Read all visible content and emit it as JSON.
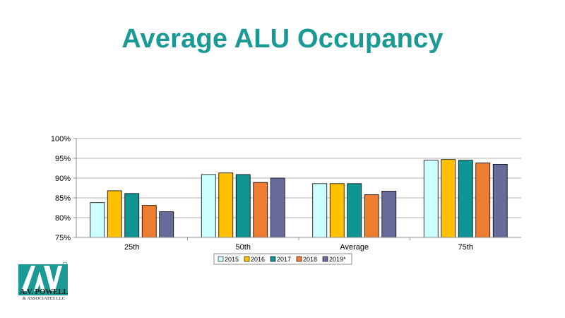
{
  "slide": {
    "title": "Average ALU Occupancy"
  },
  "logo": {
    "name": "A.V. POWELL",
    "sub": "& ASSOCIATES LLC",
    "mark": "AVP",
    "color": "#1b9a94"
  },
  "chart_data": {
    "type": "bar",
    "categories": [
      "25th",
      "50th",
      "Average",
      "75th"
    ],
    "series": [
      {
        "name": "2015",
        "color": "#ccffff",
        "values": [
          0.838,
          0.909,
          0.886,
          0.945
        ]
      },
      {
        "name": "2016",
        "color": "#ffc000",
        "values": [
          0.868,
          0.913,
          0.886,
          0.947
        ]
      },
      {
        "name": "2017",
        "color": "#0f9593",
        "values": [
          0.861,
          0.909,
          0.886,
          0.945
        ]
      },
      {
        "name": "2018",
        "color": "#ed7d31",
        "values": [
          0.831,
          0.889,
          0.858,
          0.938
        ]
      },
      {
        "name": "2019*",
        "color": "#686a9a",
        "values": [
          0.815,
          0.9,
          0.867,
          0.935
        ]
      }
    ],
    "ylim": [
      0.75,
      1.0
    ],
    "yticks": [
      "75%",
      "80%",
      "85%",
      "90%",
      "95%",
      "100%"
    ],
    "grid": true,
    "legend": "bottom"
  }
}
